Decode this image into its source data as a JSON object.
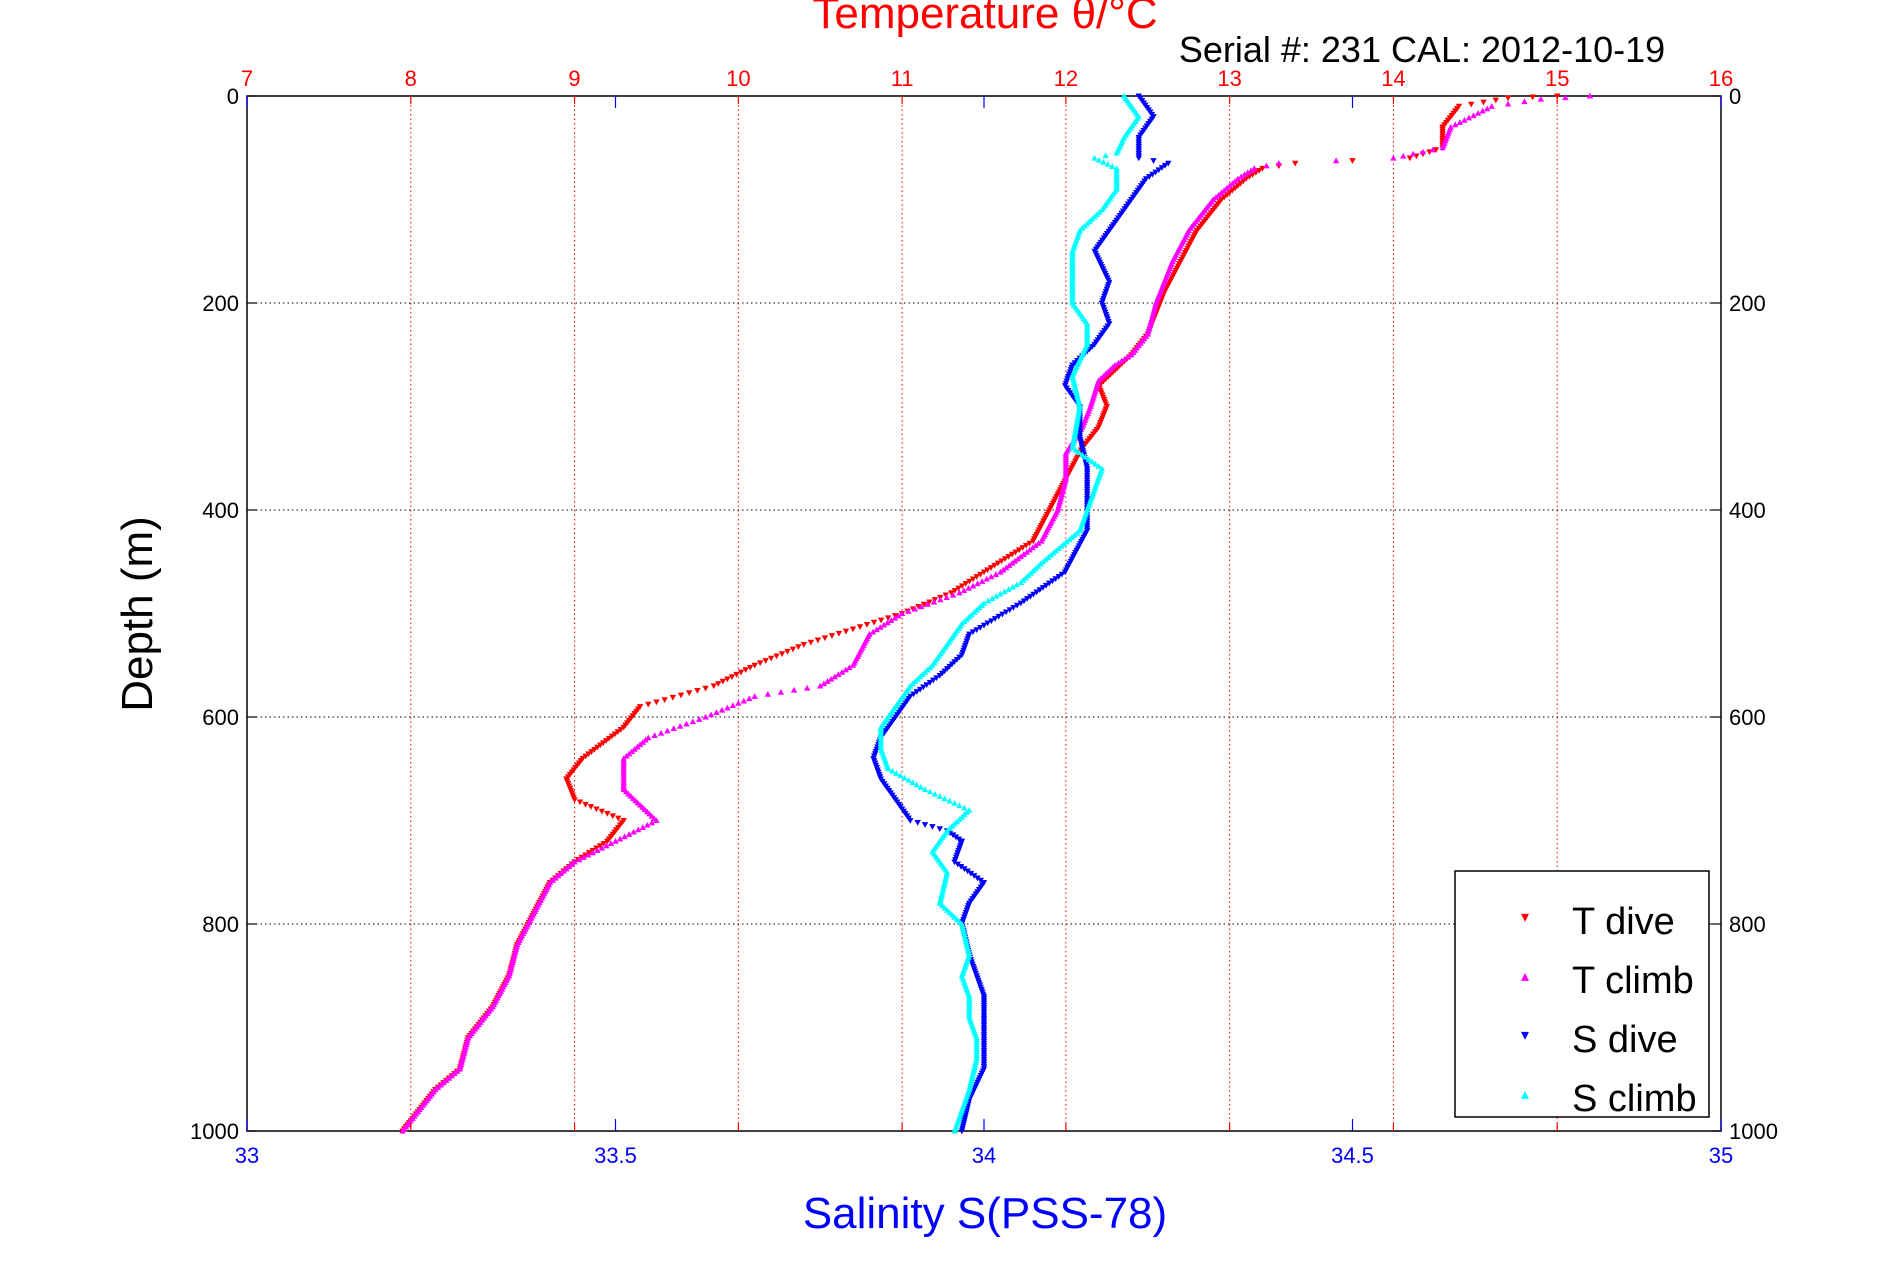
{
  "chart_data": {
    "type": "scatter",
    "title": "Temperature θ/°C",
    "subtitle": "Serial #: 231  CAL: 2012-10-19",
    "ylabel": "Depth (m)",
    "xlabel_bottom": "Salinity S(PSS-78)",
    "xlabel_top": "Temperature θ/°C",
    "ylim": [
      1000,
      0
    ],
    "xlim_salinity": [
      33,
      35
    ],
    "xlim_temperature": [
      7,
      16
    ],
    "y_ticks": [
      "0",
      "200",
      "400",
      "600",
      "800",
      "1000"
    ],
    "x_ticks_bottom": [
      "33",
      "33.5",
      "34",
      "34.5",
      "35"
    ],
    "x_ticks_top": [
      "7",
      "8",
      "9",
      "10",
      "11",
      "12",
      "13",
      "14",
      "15",
      "16"
    ],
    "grid": true,
    "legend_position": "bottom-right",
    "colors": {
      "t_dive": "#ff0000",
      "t_climb": "#ff00ff",
      "s_dive": "#0000ff",
      "s_climb": "#00ffff",
      "top_axis": "#ff0000",
      "bottom_axis": "#0000ff",
      "grid_vertical": "#ff0000",
      "grid_horizontal": "#000000"
    },
    "series": [
      {
        "name": "T dive",
        "axis": "temperature",
        "marker": "triangle-down",
        "points": [
          [
            15.0,
            0
          ],
          [
            14.7,
            2
          ],
          [
            14.4,
            10
          ],
          [
            14.3,
            30
          ],
          [
            14.3,
            50
          ],
          [
            14.1,
            60
          ],
          [
            13.4,
            65
          ],
          [
            13.2,
            70
          ],
          [
            13.1,
            80
          ],
          [
            12.95,
            100
          ],
          [
            12.8,
            130
          ],
          [
            12.7,
            160
          ],
          [
            12.6,
            190
          ],
          [
            12.55,
            210
          ],
          [
            12.5,
            230
          ],
          [
            12.4,
            250
          ],
          [
            12.3,
            265
          ],
          [
            12.2,
            280
          ],
          [
            12.25,
            300
          ],
          [
            12.2,
            320
          ],
          [
            12.1,
            340
          ],
          [
            12.0,
            370
          ],
          [
            11.9,
            400
          ],
          [
            11.8,
            430
          ],
          [
            11.5,
            460
          ],
          [
            11.3,
            480
          ],
          [
            11.0,
            500
          ],
          [
            10.4,
            530
          ],
          [
            10.1,
            550
          ],
          [
            9.85,
            570
          ],
          [
            9.4,
            590
          ],
          [
            9.3,
            610
          ],
          [
            9.05,
            640
          ],
          [
            8.95,
            660
          ],
          [
            9.0,
            680
          ],
          [
            9.3,
            700
          ],
          [
            9.2,
            720
          ],
          [
            9.0,
            740
          ],
          [
            8.85,
            760
          ],
          [
            8.75,
            790
          ],
          [
            8.65,
            820
          ],
          [
            8.6,
            850
          ],
          [
            8.5,
            880
          ],
          [
            8.35,
            910
          ],
          [
            8.3,
            940
          ],
          [
            8.15,
            960
          ],
          [
            8.0,
            990
          ],
          [
            7.95,
            1000
          ]
        ]
      },
      {
        "name": "T climb",
        "axis": "temperature",
        "marker": "triangle-up",
        "points": [
          [
            15.2,
            0
          ],
          [
            14.9,
            3
          ],
          [
            14.6,
            10
          ],
          [
            14.35,
            30
          ],
          [
            14.3,
            50
          ],
          [
            14.0,
            60
          ],
          [
            13.3,
            65
          ],
          [
            13.15,
            70
          ],
          [
            13.05,
            80
          ],
          [
            12.9,
            100
          ],
          [
            12.75,
            130
          ],
          [
            12.65,
            160
          ],
          [
            12.6,
            180
          ],
          [
            12.55,
            200
          ],
          [
            12.5,
            230
          ],
          [
            12.4,
            250
          ],
          [
            12.3,
            260
          ],
          [
            12.2,
            275
          ],
          [
            12.15,
            300
          ],
          [
            12.1,
            320
          ],
          [
            12.0,
            345
          ],
          [
            12.0,
            370
          ],
          [
            11.95,
            400
          ],
          [
            11.85,
            430
          ],
          [
            11.6,
            460
          ],
          [
            11.35,
            480
          ],
          [
            11.0,
            500
          ],
          [
            10.8,
            520
          ],
          [
            10.7,
            550
          ],
          [
            10.5,
            570
          ],
          [
            10.1,
            580
          ],
          [
            9.8,
            600
          ],
          [
            9.45,
            620
          ],
          [
            9.3,
            640
          ],
          [
            9.3,
            670
          ],
          [
            9.5,
            700
          ],
          [
            9.25,
            720
          ],
          [
            9.0,
            740
          ],
          [
            8.85,
            760
          ],
          [
            8.75,
            790
          ],
          [
            8.65,
            820
          ],
          [
            8.6,
            850
          ],
          [
            8.5,
            880
          ],
          [
            8.35,
            910
          ],
          [
            8.3,
            940
          ],
          [
            8.15,
            960
          ],
          [
            8.0,
            990
          ],
          [
            7.95,
            1000
          ]
        ]
      },
      {
        "name": "S dive",
        "axis": "salinity",
        "marker": "triangle-down",
        "points": [
          [
            34.21,
            0
          ],
          [
            34.23,
            20
          ],
          [
            34.21,
            40
          ],
          [
            34.21,
            60
          ],
          [
            34.25,
            65
          ],
          [
            34.22,
            80
          ],
          [
            34.2,
            100
          ],
          [
            34.18,
            120
          ],
          [
            34.15,
            150
          ],
          [
            34.17,
            180
          ],
          [
            34.16,
            200
          ],
          [
            34.17,
            220
          ],
          [
            34.15,
            240
          ],
          [
            34.12,
            260
          ],
          [
            34.11,
            280
          ],
          [
            34.13,
            300
          ],
          [
            34.13,
            330
          ],
          [
            34.14,
            360
          ],
          [
            34.14,
            380
          ],
          [
            34.14,
            400
          ],
          [
            34.14,
            420
          ],
          [
            34.11,
            460
          ],
          [
            34.05,
            490
          ],
          [
            33.98,
            520
          ],
          [
            33.97,
            540
          ],
          [
            33.94,
            560
          ],
          [
            33.9,
            580
          ],
          [
            33.88,
            600
          ],
          [
            33.86,
            620
          ],
          [
            33.85,
            640
          ],
          [
            33.86,
            660
          ],
          [
            33.88,
            680
          ],
          [
            33.9,
            700
          ],
          [
            33.95,
            710
          ],
          [
            33.97,
            720
          ],
          [
            33.96,
            740
          ],
          [
            34.0,
            760
          ],
          [
            33.98,
            780
          ],
          [
            33.97,
            800
          ],
          [
            33.98,
            830
          ],
          [
            33.99,
            850
          ],
          [
            34.0,
            870
          ],
          [
            34.0,
            900
          ],
          [
            34.0,
            920
          ],
          [
            34.0,
            940
          ],
          [
            33.98,
            970
          ],
          [
            33.97,
            1000
          ]
        ]
      },
      {
        "name": "S climb",
        "axis": "salinity",
        "marker": "triangle-up",
        "points": [
          [
            34.19,
            0
          ],
          [
            34.21,
            20
          ],
          [
            34.19,
            40
          ],
          [
            34.18,
            55
          ],
          [
            34.15,
            60
          ],
          [
            34.18,
            70
          ],
          [
            34.18,
            90
          ],
          [
            34.16,
            110
          ],
          [
            34.13,
            130
          ],
          [
            34.12,
            150
          ],
          [
            34.12,
            180
          ],
          [
            34.12,
            200
          ],
          [
            34.14,
            220
          ],
          [
            34.14,
            240
          ],
          [
            34.12,
            270
          ],
          [
            34.13,
            300
          ],
          [
            34.12,
            340
          ],
          [
            34.16,
            360
          ],
          [
            34.15,
            380
          ],
          [
            34.14,
            400
          ],
          [
            34.13,
            420
          ],
          [
            34.08,
            450
          ],
          [
            34.05,
            470
          ],
          [
            34.0,
            490
          ],
          [
            33.97,
            510
          ],
          [
            33.95,
            530
          ],
          [
            33.93,
            550
          ],
          [
            33.9,
            570
          ],
          [
            33.88,
            590
          ],
          [
            33.86,
            610
          ],
          [
            33.86,
            630
          ],
          [
            33.87,
            650
          ],
          [
            33.92,
            670
          ],
          [
            33.98,
            690
          ],
          [
            33.95,
            710
          ],
          [
            33.93,
            730
          ],
          [
            33.95,
            750
          ],
          [
            33.94,
            780
          ],
          [
            33.97,
            800
          ],
          [
            33.98,
            830
          ],
          [
            33.97,
            850
          ],
          [
            33.98,
            870
          ],
          [
            33.98,
            890
          ],
          [
            33.99,
            910
          ],
          [
            33.99,
            930
          ],
          [
            33.98,
            960
          ],
          [
            33.97,
            980
          ],
          [
            33.96,
            1000
          ]
        ]
      }
    ],
    "legend": [
      {
        "label": "T dive",
        "series": "t_dive",
        "marker": "▾"
      },
      {
        "label": "T climb",
        "series": "t_climb",
        "marker": "▴"
      },
      {
        "label": "S dive",
        "series": "s_dive",
        "marker": "▾"
      },
      {
        "label": "S climb",
        "series": "s_climb",
        "marker": "▴"
      }
    ]
  }
}
